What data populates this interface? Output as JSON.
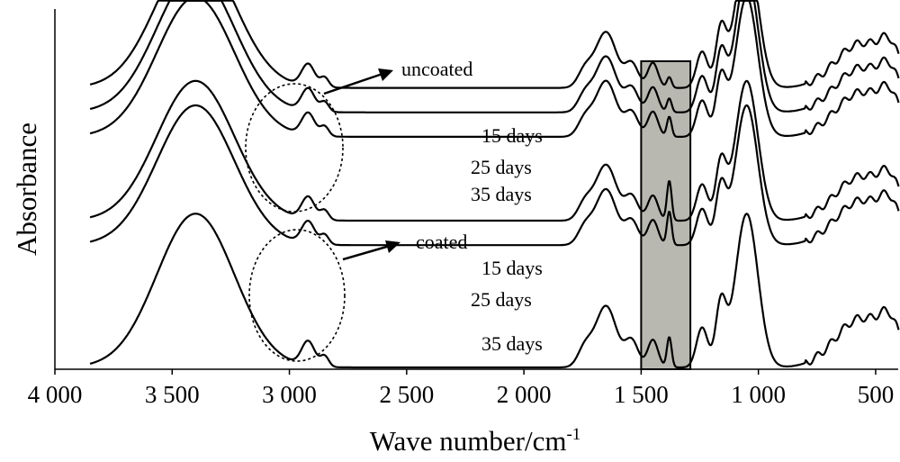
{
  "chart_data": {
    "type": "line",
    "title": "",
    "xlabel": "Wave number/cm",
    "xlabel_superscript": "-1",
    "ylabel": "Absorbance",
    "xlim": [
      4000,
      400
    ],
    "x_reversed": true,
    "x_ticks": [
      4000,
      3500,
      3000,
      2500,
      2000,
      1500,
      1000,
      500
    ],
    "x_tick_labels": [
      "4 000",
      "3 500",
      "3 000",
      "2 500",
      "2 000",
      "1 500",
      "1 000",
      "500"
    ],
    "y_ticks_shown": false,
    "highlight_band": {
      "from": 1500,
      "to": 1290,
      "color": "#b8b8b0"
    },
    "groups": [
      {
        "name": "uncoated",
        "series": [
          "15 days",
          "25 days",
          "35 days"
        ],
        "ellipse_around_wavenumber": [
          3240,
          2780
        ]
      },
      {
        "name": "coated",
        "series": [
          "15 days",
          "25 days",
          "35 days"
        ],
        "ellipse_around_wavenumber": [
          3260,
          2760
        ]
      }
    ],
    "peaks_wavenumber": [
      3400,
      2920,
      2850,
      1740,
      1650,
      1540,
      1450,
      1380,
      1240,
      1160,
      1050,
      560
    ],
    "series": [
      {
        "group": "uncoated",
        "name": "15 days",
        "baseline": 0.8,
        "amp": 0.4,
        "sharp1380": 0.35
      },
      {
        "group": "uncoated",
        "name": "25 days",
        "baseline": 0.73,
        "amp": 0.4,
        "sharp1380": 0.45
      },
      {
        "group": "uncoated",
        "name": "35 days",
        "baseline": 0.66,
        "amp": 0.4,
        "sharp1380": 0.65
      },
      {
        "group": "coated",
        "name": "15 days",
        "baseline": 0.42,
        "amp": 0.4,
        "sharp1380": 1.3
      },
      {
        "group": "coated",
        "name": "25 days",
        "baseline": 0.35,
        "amp": 0.4,
        "sharp1380": 1.1
      },
      {
        "group": "coated",
        "name": "35 days",
        "baseline": 0.0,
        "amp": 0.44,
        "sharp1380": 0.9
      }
    ]
  }
}
